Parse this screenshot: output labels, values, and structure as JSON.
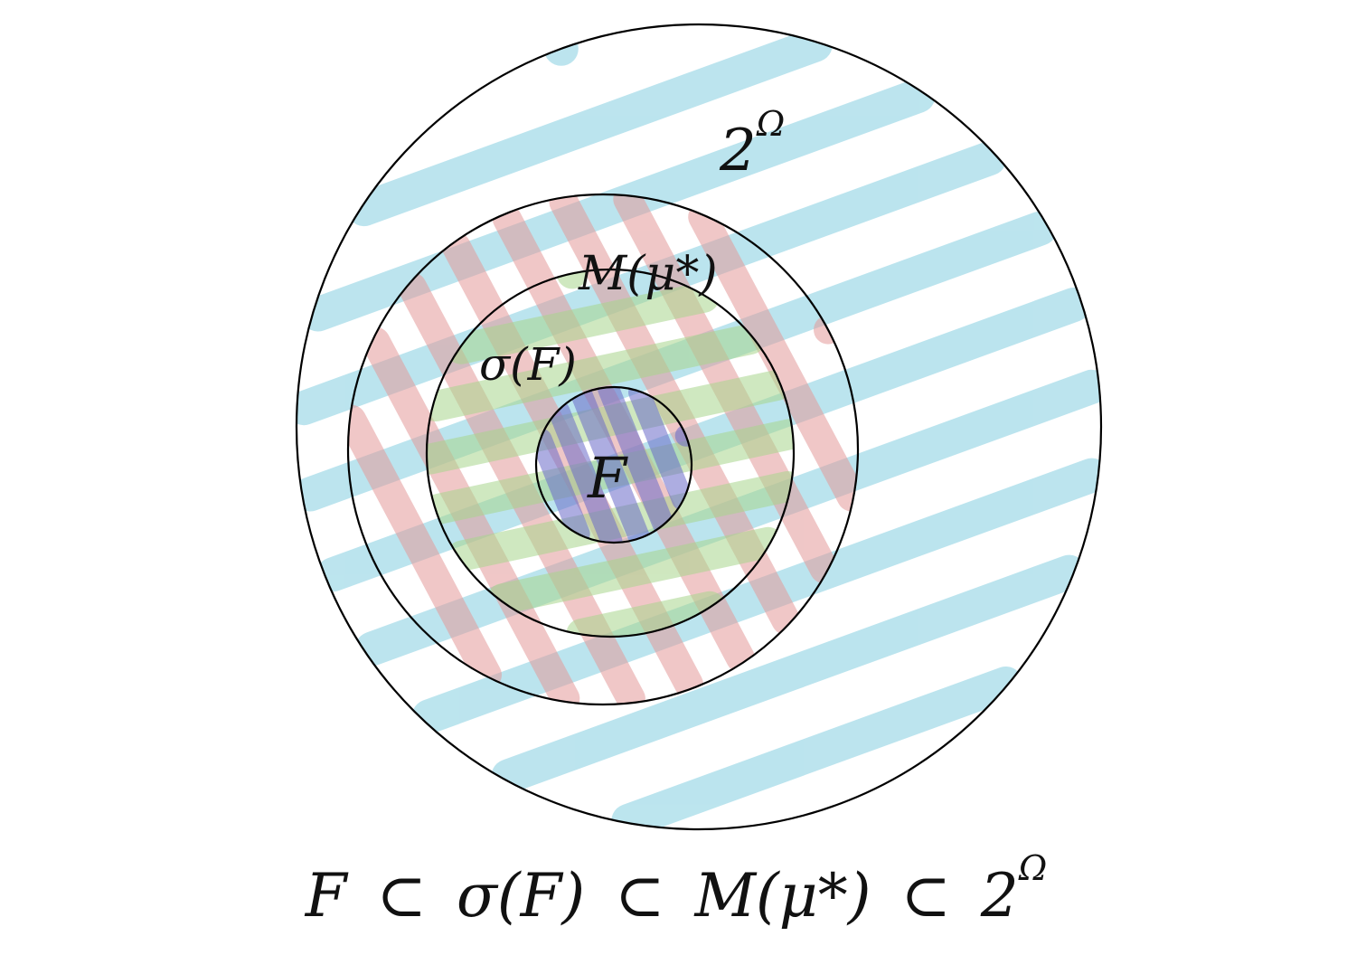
{
  "diagram": {
    "sets": [
      {
        "id": "power-set",
        "label_base": "2",
        "label_sup": "Ω",
        "fill_color": "#8fd3e3"
      },
      {
        "id": "measurable",
        "label": "M(μ*)",
        "fill_color": "#e39a9a"
      },
      {
        "id": "sigma-algebra",
        "label": "σ(F)",
        "fill_color": "#a8d58c"
      },
      {
        "id": "field",
        "label": "F",
        "fill_color": "#6a6ac8"
      }
    ],
    "relation": {
      "parts": [
        "F",
        "⊂",
        "σ(F)",
        "⊂",
        "M(μ*)",
        "⊂",
        "2"
      ],
      "last_sup": "Ω"
    }
  }
}
